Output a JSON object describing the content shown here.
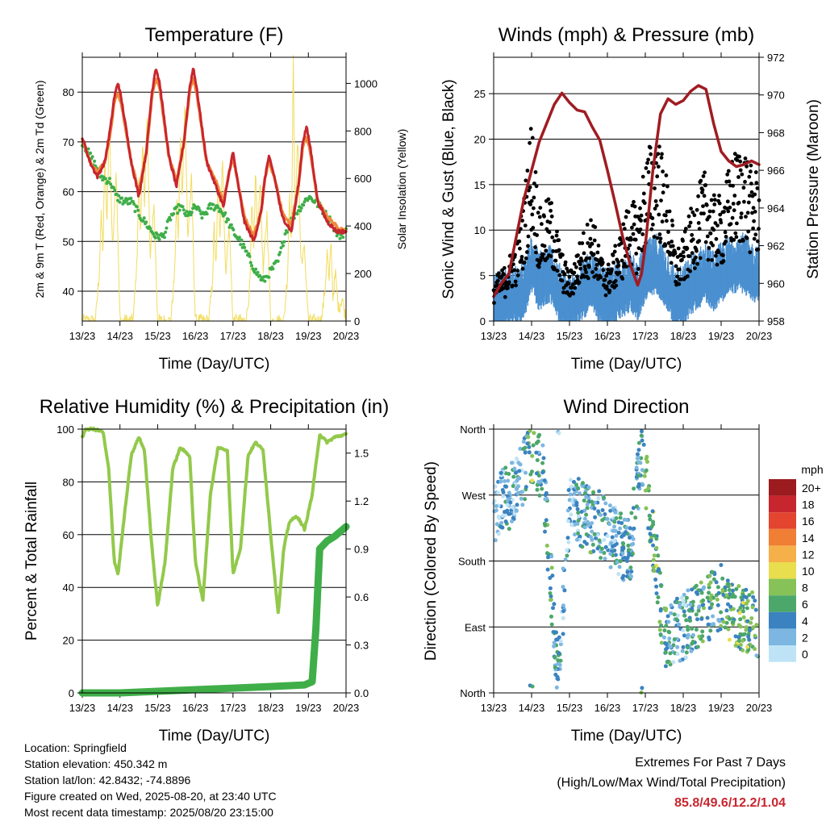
{
  "chart_data": [
    {
      "type": "line",
      "title": "Temperature (F)",
      "xlabel": "Time (Day/UTC)",
      "ylabel_left": "2m & 9m T (Red, Orange) & 2m Td (Green)",
      "ylabel_right": "Solar Insolation (Yellow)",
      "x_ticks": [
        "13/23",
        "14/23",
        "15/23",
        "16/23",
        "17/23",
        "18/23",
        "19/23",
        "20/23"
      ],
      "x_range": [
        0,
        7
      ],
      "ylim_left": [
        34,
        87
      ],
      "yticks_left": [
        40,
        50,
        60,
        70,
        80
      ],
      "ylim_right": [
        0,
        1110
      ],
      "yticks_right": [
        0,
        200,
        400,
        600,
        800,
        1000
      ],
      "colors": {
        "t2m": "#c8262e",
        "t9m": "#f08a3c",
        "td": "#3fae49",
        "solar": "#f2dc5d"
      },
      "series": [
        {
          "name": "2m T",
          "color": "#c8262e",
          "x": [
            0,
            0.2,
            0.4,
            0.6,
            0.75,
            0.85,
            0.95,
            1.05,
            1.3,
            1.5,
            1.7,
            1.85,
            1.95,
            2.05,
            2.3,
            2.5,
            2.7,
            2.85,
            2.95,
            3.05,
            3.3,
            3.55,
            3.75,
            3.9,
            4.0,
            4.1,
            4.3,
            4.55,
            4.75,
            4.85,
            4.95,
            5.1,
            5.3,
            5.55,
            5.75,
            5.85,
            5.95,
            6.05,
            6.25,
            6.5,
            6.75,
            7.0
          ],
          "y": [
            71,
            66,
            63,
            66,
            73,
            79,
            82,
            78,
            66,
            59,
            68,
            80,
            85,
            82,
            67,
            61,
            70,
            81,
            85,
            80,
            66,
            61,
            57,
            64,
            68,
            63,
            54,
            50,
            56,
            63,
            67,
            63,
            55,
            52,
            62,
            70,
            73,
            69,
            58,
            54,
            52,
            52
          ]
        },
        {
          "name": "9m T",
          "color": "#f08a3c",
          "x": [
            0,
            0.2,
            0.4,
            0.6,
            0.75,
            0.85,
            0.95,
            1.05,
            1.3,
            1.5,
            1.7,
            1.85,
            1.95,
            2.05,
            2.3,
            2.5,
            2.7,
            2.85,
            2.95,
            3.05,
            3.3,
            3.55,
            3.75,
            3.9,
            4.0,
            4.1,
            4.3,
            4.55,
            4.75,
            4.85,
            4.95,
            5.1,
            5.3,
            5.55,
            5.75,
            5.85,
            5.95,
            6.05,
            6.25,
            6.5,
            6.75,
            7.0
          ],
          "y": [
            70.5,
            66,
            64,
            66,
            72,
            78,
            80,
            77,
            66,
            60,
            68,
            79,
            83,
            81,
            67,
            62,
            70,
            80,
            83,
            79,
            66,
            62,
            58,
            64,
            67,
            63,
            55,
            51,
            56,
            63,
            66,
            63,
            56,
            53,
            62,
            69,
            71,
            68,
            58,
            55,
            53,
            52
          ]
        },
        {
          "name": "2m Td",
          "color": "#3fae49",
          "x": [
            0,
            0.3,
            0.5,
            0.75,
            0.9,
            1.1,
            1.3,
            1.55,
            1.75,
            1.95,
            2.15,
            2.35,
            2.6,
            2.8,
            3.0,
            3.2,
            3.4,
            3.6,
            3.8,
            4.0,
            4.2,
            4.4,
            4.6,
            4.8,
            5.0,
            5.2,
            5.4,
            5.6,
            5.8,
            6.0,
            6.2,
            6.4,
            6.6,
            6.8,
            7.0
          ],
          "y": [
            70,
            66,
            63,
            62,
            59,
            58,
            58,
            55,
            53,
            51,
            51,
            55,
            57,
            55,
            57,
            55,
            57,
            57,
            55,
            52,
            50,
            47,
            44,
            42,
            44,
            46,
            52,
            55,
            57,
            59,
            58,
            56,
            54,
            51,
            52
          ]
        },
        {
          "name": "Solar Insolation",
          "color": "#f2dc5d",
          "x": [
            0,
            0.35,
            0.45,
            0.5,
            0.55,
            0.6,
            0.65,
            0.72,
            0.8,
            0.9,
            1.0,
            1.35,
            1.45,
            1.5,
            1.55,
            1.6,
            1.65,
            1.72,
            1.8,
            1.9,
            2.0,
            2.35,
            2.45,
            2.5,
            2.55,
            2.6,
            2.65,
            2.72,
            2.8,
            2.9,
            3.0,
            3.35,
            3.45,
            3.5,
            3.55,
            3.6,
            3.65,
            3.72,
            3.8,
            3.9,
            4.0,
            4.35,
            4.45,
            4.5,
            4.55,
            4.6,
            4.65,
            4.72,
            4.8,
            4.9,
            5.0,
            5.35,
            5.45,
            5.5,
            5.55,
            5.6,
            5.65,
            5.72,
            5.8,
            5.9,
            6.0,
            6.35,
            6.45,
            6.5,
            6.55,
            6.6,
            6.65,
            6.72,
            6.8,
            6.9,
            7.0
          ],
          "y": [
            0,
            0,
            200,
            450,
            300,
            700,
            400,
            850,
            300,
            650,
            0,
            0,
            250,
            600,
            350,
            800,
            450,
            900,
            250,
            500,
            0,
            0,
            200,
            500,
            350,
            780,
            500,
            950,
            350,
            600,
            0,
            0,
            150,
            400,
            200,
            600,
            350,
            700,
            200,
            400,
            0,
            0,
            150,
            500,
            300,
            650,
            350,
            600,
            200,
            450,
            0,
            0,
            200,
            550,
            300,
            1100,
            400,
            800,
            250,
            300,
            0,
            0,
            150,
            300,
            150,
            350,
            100,
            200,
            50,
            100,
            0
          ]
        }
      ]
    },
    {
      "type": "scatter",
      "title": "Winds (mph) & Pressure (mb)",
      "xlabel": "Time (Day/UTC)",
      "ylabel_left": "Sonic Wind & Gust (Blue, Black)",
      "ylabel_right": "Station Pressure (Maroon)",
      "x_ticks": [
        "13/23",
        "14/23",
        "15/23",
        "16/23",
        "17/23",
        "18/23",
        "19/23",
        "20/23"
      ],
      "x_range": [
        0,
        7
      ],
      "ylim_left": [
        0,
        29
      ],
      "yticks_left": [
        0,
        5,
        10,
        15,
        20,
        25
      ],
      "ylim_right": [
        958,
        972
      ],
      "yticks_right": [
        958,
        960,
        962,
        964,
        966,
        968,
        970,
        972
      ],
      "colors": {
        "wind": "#4a8fcf",
        "gust": "#000000",
        "pressure": "#a01c22"
      },
      "series": [
        {
          "name": "Station Pressure",
          "color": "#a01c22",
          "x": [
            0,
            0.2,
            0.4,
            0.6,
            0.8,
            1.0,
            1.2,
            1.4,
            1.6,
            1.8,
            2.0,
            2.2,
            2.4,
            2.6,
            2.8,
            3.0,
            3.2,
            3.4,
            3.6,
            3.8,
            3.9,
            4.0,
            4.2,
            4.4,
            4.6,
            4.8,
            5.0,
            5.2,
            5.4,
            5.6,
            5.8,
            6.0,
            6.2,
            6.4,
            6.6,
            6.8,
            7.0
          ],
          "y": [
            959.3,
            960.0,
            960.5,
            962.5,
            964.5,
            966.0,
            967.5,
            968.5,
            969.5,
            970.1,
            969.6,
            969.2,
            969.1,
            968.3,
            967.6,
            966.0,
            964.3,
            962.5,
            961.0,
            959.9,
            960.5,
            962.0,
            966.0,
            969.0,
            969.8,
            969.5,
            969.7,
            970.2,
            970.5,
            970.3,
            968.5,
            967.0,
            966.5,
            966.2,
            966.3,
            966.5,
            966.3
          ]
        },
        {
          "name": "Sonic Wind",
          "color": "#4a8fcf",
          "mean_x": [
            0,
            0.3,
            0.6,
            0.8,
            1.0,
            1.2,
            1.5,
            1.8,
            2.0,
            2.3,
            2.6,
            2.8,
            3.0,
            3.3,
            3.6,
            3.8,
            4.0,
            4.3,
            4.6,
            4.8,
            5.0,
            5.3,
            5.6,
            5.8,
            6.0,
            6.3,
            6.6,
            6.8,
            7.0
          ],
          "mean_y": [
            1.5,
            2,
            2.5,
            3,
            6,
            4,
            5,
            2,
            1.5,
            3,
            4,
            2.5,
            2,
            3,
            4,
            3,
            5,
            6,
            4,
            2,
            2.5,
            4,
            5,
            4,
            5,
            6,
            6,
            5,
            5
          ]
        },
        {
          "name": "Sonic Gust",
          "color": "#000000",
          "mean_x": [
            0,
            0.3,
            0.6,
            0.8,
            1.0,
            1.2,
            1.5,
            1.8,
            2.0,
            2.3,
            2.6,
            2.8,
            3.0,
            3.3,
            3.6,
            3.8,
            4.0,
            4.3,
            4.6,
            4.8,
            5.0,
            5.3,
            5.6,
            5.8,
            6.0,
            6.3,
            6.6,
            6.8,
            7.0
          ],
          "mean_y": [
            3,
            4,
            6,
            9,
            15,
            8,
            9,
            5,
            3.5,
            6,
            8,
            5,
            4,
            6,
            9,
            8,
            12,
            14,
            10,
            5,
            6,
            9,
            11,
            9,
            9,
            12,
            13,
            11,
            11
          ]
        }
      ]
    },
    {
      "type": "line",
      "title": "Relative Humidity (%) & Precipitation (in)",
      "xlabel": "Time (Day/UTC)",
      "ylabel_left": "Percent & Total Rainfall",
      "x_ticks": [
        "13/23",
        "14/23",
        "15/23",
        "16/23",
        "17/23",
        "18/23",
        "19/23",
        "20/23"
      ],
      "x_range": [
        0,
        7
      ],
      "ylim_left": [
        0,
        100
      ],
      "yticks_left": [
        0,
        20,
        40,
        60,
        80,
        100
      ],
      "ylim_right": [
        0,
        1.65
      ],
      "yticks_right_labels": [
        "0.0",
        "0.3",
        "0.6",
        "0.9",
        "1.2",
        "1.5"
      ],
      "colors": {
        "rh": "#93c94b",
        "precip": "#3fae49"
      },
      "series": [
        {
          "name": "Relative Humidity",
          "color": "#93c94b",
          "x": [
            0,
            0.1,
            0.3,
            0.55,
            0.7,
            0.85,
            0.95,
            1.1,
            1.3,
            1.5,
            1.65,
            1.85,
            2.0,
            2.2,
            2.4,
            2.6,
            2.85,
            3.0,
            3.2,
            3.4,
            3.6,
            3.85,
            4.0,
            4.2,
            4.4,
            4.6,
            4.8,
            5.0,
            5.2,
            5.35,
            5.5,
            5.7,
            5.9,
            6.1,
            6.3,
            6.5,
            6.7,
            7.0
          ],
          "y": [
            97,
            100,
            100,
            99,
            85,
            50,
            45,
            65,
            90,
            97,
            92,
            55,
            33,
            50,
            85,
            93,
            90,
            50,
            35,
            75,
            93,
            92,
            45,
            55,
            90,
            95,
            92,
            60,
            30,
            55,
            65,
            67,
            62,
            75,
            98,
            95,
            97,
            98
          ]
        },
        {
          "name": "Total Rainfall",
          "color": "#3fae49",
          "x": [
            0,
            1.0,
            2.0,
            3.0,
            4.0,
            5.0,
            5.9,
            6.0,
            6.1,
            6.2,
            6.3,
            6.5,
            6.7,
            6.9,
            7.0
          ],
          "y": [
            0,
            0,
            0.01,
            0.02,
            0.03,
            0.04,
            0.05,
            0.06,
            0.07,
            0.4,
            0.9,
            0.95,
            0.98,
            1.02,
            1.04
          ]
        }
      ]
    },
    {
      "type": "scatter",
      "title": "Wind Direction",
      "xlabel": "Time (Day/UTC)",
      "ylabel": "Direction (Colored By Speed)",
      "x_ticks": [
        "13/23",
        "14/23",
        "15/23",
        "16/23",
        "17/23",
        "18/23",
        "19/23",
        "20/23"
      ],
      "x_range": [
        0,
        7
      ],
      "y_ticks": [
        "North",
        "East",
        "South",
        "West",
        "North"
      ],
      "ylim": [
        0,
        360
      ],
      "legend_title": "mph",
      "legend": [
        {
          "label": "20+",
          "color": "#9b1b1f"
        },
        {
          "label": "18",
          "color": "#c8262e"
        },
        {
          "label": "16",
          "color": "#e3452f"
        },
        {
          "label": "14",
          "color": "#f07e35"
        },
        {
          "label": "12",
          "color": "#f6b04a"
        },
        {
          "label": "10",
          "color": "#e9de4e"
        },
        {
          "label": "8",
          "color": "#86c257"
        },
        {
          "label": "6",
          "color": "#4ca76a"
        },
        {
          "label": "4",
          "color": "#3a83c0"
        },
        {
          "label": "2",
          "color": "#7cb6e1"
        },
        {
          "label": "0",
          "color": "#bfe3f6"
        }
      ],
      "legend_placement": "right",
      "direction_trend": {
        "x": [
          0,
          0.5,
          1.0,
          1.3,
          1.7,
          2.0,
          2.4,
          2.8,
          3.2,
          3.6,
          3.9,
          4.1,
          4.5,
          5.0,
          5.5,
          6.0,
          6.5,
          7.0
        ],
        "y": [
          250,
          270,
          330,
          300,
          20,
          260,
          240,
          230,
          210,
          190,
          330,
          260,
          80,
          90,
          110,
          130,
          100,
          90
        ]
      }
    }
  ],
  "station_info": {
    "location": "Location: Springfield",
    "elevation": "Station elevation: 450.342 m",
    "latlon": "Station lat/lon: 42.8432; -74.8896",
    "created": "Figure created on Wed, 2025-08-20, at 23:40 UTC",
    "recent": "Most recent data timestamp: 2025/08/20 23:15:00"
  },
  "extremes": {
    "line1": "Extremes For Past 7 Days",
    "line2": "(High/Low/Max Wind/Total Precipitation)",
    "values": "85.8/49.6/12.2/1.04",
    "value_color": "#c8262e"
  }
}
